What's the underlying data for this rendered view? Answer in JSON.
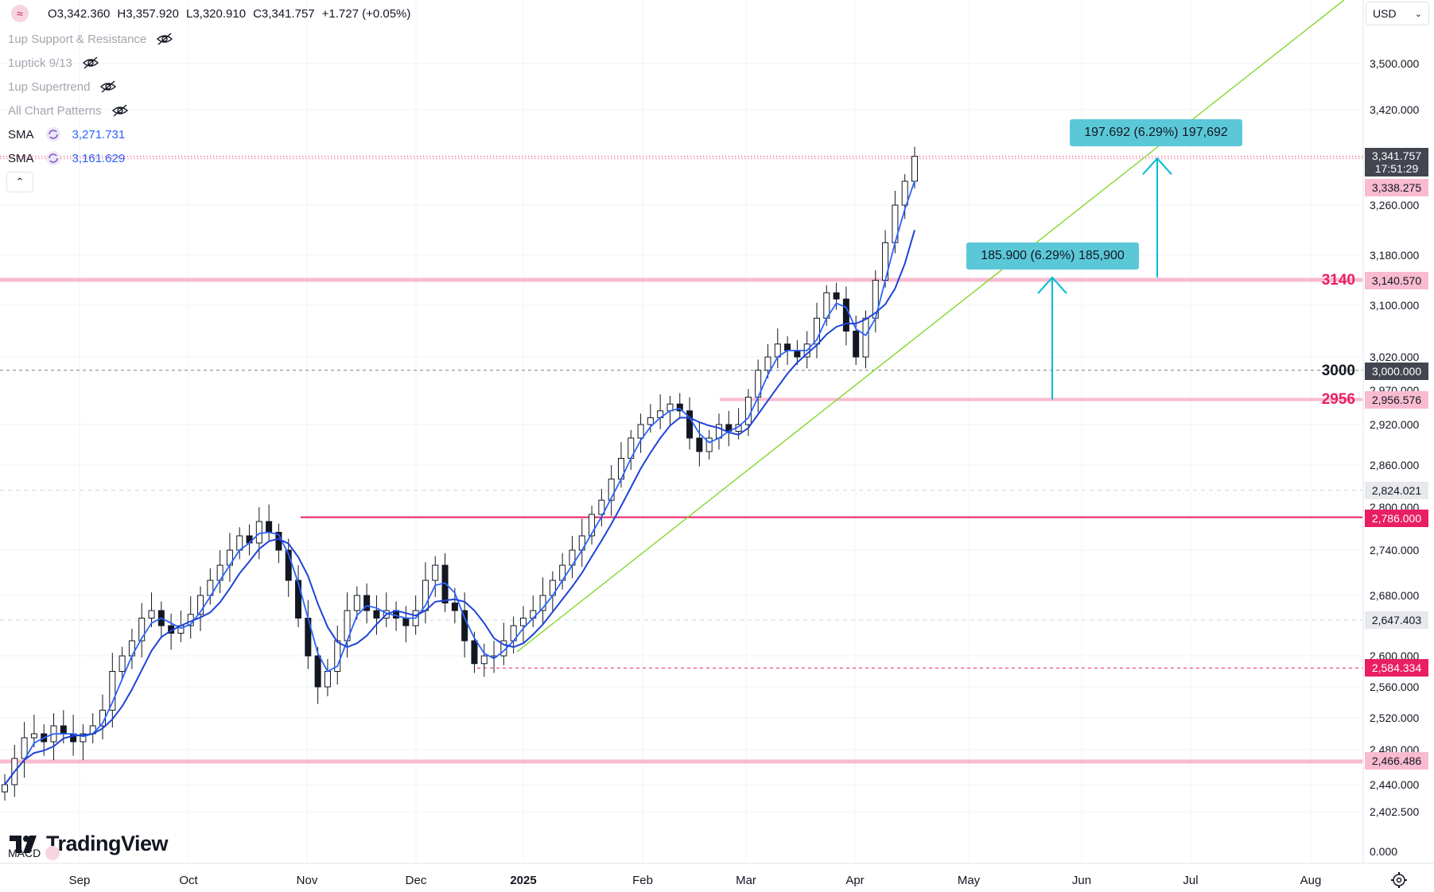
{
  "ohlc": {
    "open": "O3,342.360",
    "high": "H3,357.920",
    "low": "L3,320.910",
    "close": "C3,341.757",
    "change": "+1.727 (+0.05%)"
  },
  "legend": {
    "indicators": [
      "1up Support & Resistance",
      "1uptick 9/13",
      "1up Supertrend",
      "All Chart Patterns"
    ],
    "sma": [
      {
        "label": "SMA",
        "value": "3,271.731"
      },
      {
        "label": "SMA",
        "value": "3,161.629"
      }
    ]
  },
  "currency": "USD",
  "macd_label": "MACD",
  "brand": "TradingView",
  "colors": {
    "up": "#131722",
    "down": "#131722",
    "sma": "#1e43d8",
    "pink": "#f8bbd0",
    "magenta": "#e91e63",
    "cyan": "#00bcd4",
    "trend": "#7ed321",
    "measure": "#5bc8d8"
  },
  "price_scale": [
    "3,500.000",
    "3,420.000",
    "3,260.000",
    "3,180.000",
    "3,100.000",
    "3,020.000",
    "2,970.000",
    "2,920.000",
    "2,860.000",
    "2,800.000",
    "2,740.000",
    "2,680.000",
    "2,600.000",
    "2,560.000",
    "2,520.000",
    "2,480.000",
    "2,440.000",
    "2,402.500",
    "0.000"
  ],
  "price_tags": [
    {
      "value": "3,341.757",
      "sub": "17:51:29",
      "style": "dark"
    },
    {
      "value": "3,338.275",
      "style": "pink"
    },
    {
      "value": "3,140.570",
      "style": "pink"
    },
    {
      "value": "3,000.000",
      "style": "dark"
    },
    {
      "value": "2,956.576",
      "style": "pink"
    },
    {
      "value": "2,824.021",
      "style": "grey"
    },
    {
      "value": "2,786.000",
      "style": "magenta"
    },
    {
      "value": "2,647.403",
      "style": "grey"
    },
    {
      "value": "2,584.334",
      "style": "magenta"
    },
    {
      "value": "2,466.486",
      "style": "pink"
    }
  ],
  "time_axis": [
    "Sep",
    "Oct",
    "Nov",
    "Dec",
    "2025",
    "Feb",
    "Mar",
    "Apr",
    "May",
    "Jun",
    "Jul",
    "Aug"
  ],
  "level_labels": [
    {
      "text": "3140",
      "color": "#e91e63"
    },
    {
      "text": "3000",
      "color": "#131722"
    },
    {
      "text": "2956",
      "color": "#e91e63"
    }
  ],
  "measurements": [
    "185.900 (6.29%) 185,900",
    "197.692 (6.29%) 197,692"
  ],
  "chart_data": {
    "type": "line",
    "series": [
      {
        "values": [
          2440,
          2470,
          2495,
          2500,
          2490,
          2510,
          2500,
          2490,
          2500,
          2510,
          2530,
          2580,
          2600,
          2620,
          2650,
          2660,
          2640,
          2630,
          2640,
          2655,
          2680,
          2700,
          2720,
          2740,
          2760,
          2750,
          2780,
          2765,
          2740,
          2700,
          2650,
          2600,
          2560,
          2580,
          2620,
          2660,
          2680,
          2660,
          2650,
          2660,
          2650,
          2640,
          2660,
          2700,
          2720,
          2670,
          2660,
          2620,
          2590,
          2600,
          2600,
          2620,
          2640,
          2650,
          2660,
          2680,
          2700,
          2720,
          2740,
          2760,
          2790,
          2810,
          2840,
          2870,
          2900,
          2920,
          2930,
          2940,
          2950,
          2940,
          2900,
          2880,
          2900,
          2920,
          2910,
          2920,
          2960,
          3000,
          3020,
          3040,
          3030,
          3020,
          3040,
          3080,
          3120,
          3110,
          3060,
          3020,
          3080,
          3140,
          3200,
          3260,
          3300,
          3341.757
        ]
      }
    ],
    "sma_values": [
      "3,271.731",
      "3,161.629"
    ],
    "ylim": [
      2402.5,
      3540
    ]
  }
}
